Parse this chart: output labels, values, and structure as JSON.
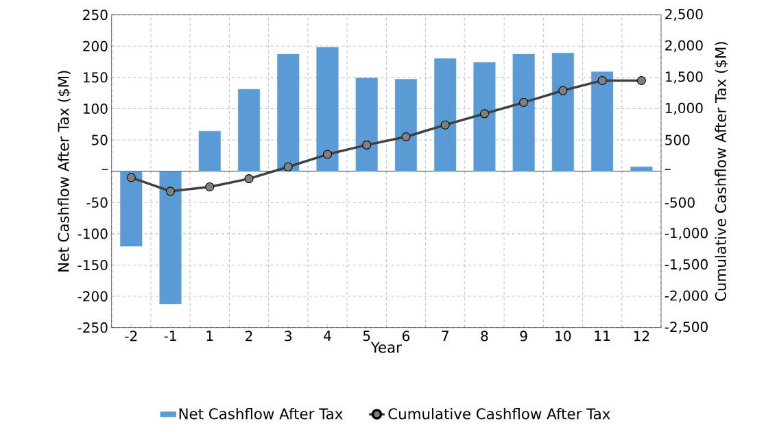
{
  "chart_data": {
    "type": "bar",
    "xlabel": "Year",
    "ylabel": "Net Cashflow After Tax ($M)",
    "y2label": "Cumulative Cashflow After Tax ($M)",
    "categories": [
      "-2",
      "-1",
      "1",
      "2",
      "3",
      "4",
      "5",
      "6",
      "7",
      "8",
      "9",
      "10",
      "11",
      "12"
    ],
    "series": [
      {
        "name": "Net Cashflow After Tax",
        "color": "#5b9bd5",
        "values": [
          -120,
          -212,
          64,
          131,
          187,
          198,
          149,
          147,
          180,
          174,
          187,
          189,
          159,
          7
        ]
      },
      {
        "name": "Cumulative Cashflow After Tax",
        "type": "line",
        "axis": "y2",
        "color": "#404040",
        "marker": "circle",
        "line_style": "solid",
        "values": [
          -100,
          -320,
          -250,
          -120,
          70,
          270,
          420,
          550,
          740,
          920,
          1100,
          1290,
          1450,
          1450
        ]
      }
    ],
    "ylim": [
      -250,
      250
    ],
    "yticks": [
      -250,
      -200,
      -150,
      -100,
      -50,
      {
        "value": 0,
        "label": "–"
      },
      50,
      100,
      150,
      200,
      250
    ],
    "y2lim": [
      -2500,
      2500
    ],
    "y2ticks": [
      {
        "value": -2500,
        "label": "-2,500"
      },
      {
        "value": -2000,
        "label": "-2,000"
      },
      {
        "value": -1500,
        "label": "-1,500"
      },
      {
        "value": -1000,
        "label": "-1,000"
      },
      -500,
      {
        "value": 0,
        "label": "–"
      },
      500,
      {
        "value": 1000,
        "label": "1,000"
      },
      {
        "value": 1500,
        "label": "1,500"
      },
      {
        "value": 2000,
        "label": "2,000"
      },
      {
        "value": 2500,
        "label": "2,500"
      }
    ],
    "grid": true,
    "legend": "bottom"
  }
}
